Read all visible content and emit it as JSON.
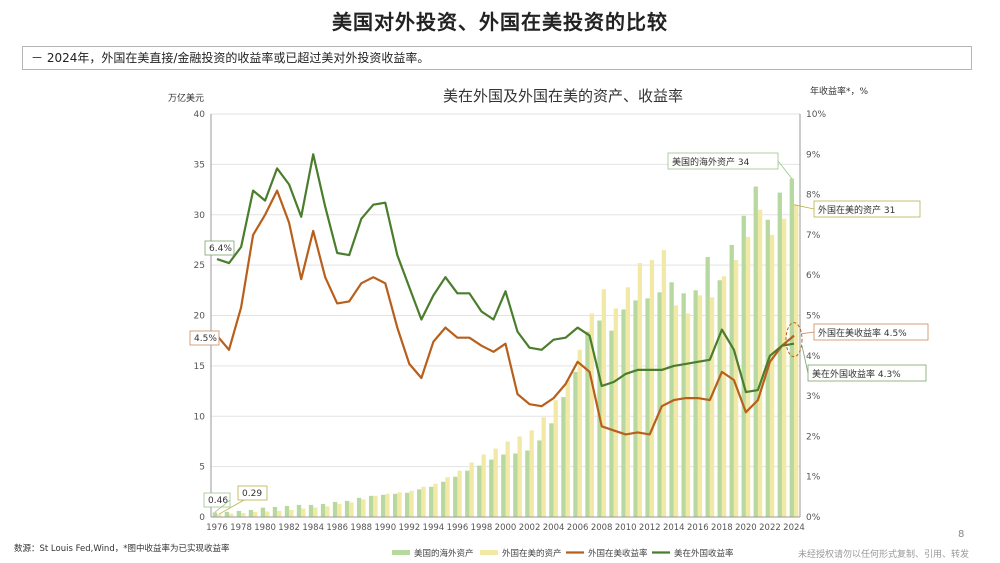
{
  "page": {
    "title": "美国对外投资、外国在美投资的比较",
    "note": "－ 2024年，外国在美直接/金融投资的收益率或已超过美对外投资收益率。",
    "source": "数源：St Louis Fed,Wind，*图中收益率为已实现收益率",
    "page_number": "8",
    "copyright": "未经授权请勿以任何形式复制、引用、转发"
  },
  "colors": {
    "us_overseas_assets": "#b7d9a0",
    "foreign_us_assets": "#f3e9a6",
    "foreign_us_yield": "#b85f1c",
    "us_foreign_yield": "#4a7d2c"
  },
  "chart_data": {
    "type": "bar+line",
    "title": "美在外国及外国在美的资产、收益率",
    "y_left_label": "万亿美元",
    "y_right_label": "年收益率*，%",
    "ylim_left": [
      0,
      40
    ],
    "ylim_right": [
      0,
      10
    ],
    "y_left_ticks": [
      "0",
      "5",
      "10",
      "15",
      "20",
      "25",
      "30",
      "35",
      "40"
    ],
    "y_right_ticks": [
      "0%",
      "1%",
      "2%",
      "3%",
      "4%",
      "5%",
      "6%",
      "7%",
      "8%",
      "9%",
      "10%"
    ],
    "x": [
      1976,
      1977,
      1978,
      1979,
      1980,
      1981,
      1982,
      1983,
      1984,
      1985,
      1986,
      1987,
      1988,
      1989,
      1990,
      1991,
      1992,
      1993,
      1994,
      1995,
      1996,
      1997,
      1998,
      1999,
      2000,
      2001,
      2002,
      2003,
      2004,
      2005,
      2006,
      2007,
      2008,
      2009,
      2010,
      2011,
      2012,
      2013,
      2014,
      2015,
      2016,
      2017,
      2018,
      2019,
      2020,
      2021,
      2022,
      2023,
      2024
    ],
    "x_tick_labels": [
      "1976",
      "1978",
      "1980",
      "1982",
      "1984",
      "1986",
      "1988",
      "1990",
      "1992",
      "1994",
      "1996",
      "1998",
      "2000",
      "2002",
      "2004",
      "2006",
      "2008",
      "2010",
      "2012",
      "2014",
      "2016",
      "2018",
      "2020",
      "2022",
      "2024"
    ],
    "series": [
      {
        "name": "美国的海外资产",
        "type": "bar",
        "axis": "left",
        "values": [
          0.46,
          0.51,
          0.6,
          0.7,
          0.93,
          1.0,
          1.1,
          1.2,
          1.2,
          1.3,
          1.5,
          1.6,
          1.9,
          2.1,
          2.2,
          2.3,
          2.4,
          2.75,
          3.0,
          3.5,
          4.0,
          4.6,
          5.1,
          5.7,
          6.2,
          6.3,
          6.6,
          7.6,
          9.3,
          11.9,
          14.4,
          18.4,
          19.5,
          18.5,
          20.6,
          21.5,
          21.7,
          22.3,
          23.3,
          22.2,
          22.5,
          25.8,
          23.5,
          27.0,
          29.9,
          32.8,
          29.5,
          32.2,
          33.6
        ]
      },
      {
        "name": "外国在美的资产",
        "type": "bar",
        "axis": "left",
        "values": [
          0.29,
          0.33,
          0.4,
          0.5,
          0.55,
          0.6,
          0.7,
          0.85,
          0.95,
          1.05,
          1.3,
          1.45,
          1.75,
          2.1,
          2.3,
          2.45,
          2.6,
          3.0,
          3.3,
          3.95,
          4.6,
          5.4,
          6.2,
          6.8,
          7.5,
          8.0,
          8.6,
          9.9,
          11.6,
          13.6,
          16.6,
          20.2,
          22.6,
          20.7,
          22.8,
          25.2,
          25.5,
          26.5,
          21.0,
          20.2,
          22.0,
          21.8,
          23.9,
          25.5,
          27.8,
          30.5,
          28.0,
          29.6,
          31.0
        ]
      },
      {
        "name": "外国在美收益率",
        "type": "line",
        "axis": "right",
        "values": [
          4.5,
          4.15,
          5.2,
          7.0,
          7.5,
          8.1,
          7.3,
          5.9,
          7.1,
          5.95,
          5.3,
          5.35,
          5.8,
          5.95,
          5.8,
          4.7,
          3.8,
          3.45,
          4.35,
          4.7,
          4.45,
          4.45,
          4.25,
          4.1,
          4.3,
          3.05,
          2.8,
          2.75,
          2.95,
          3.3,
          3.85,
          3.6,
          2.25,
          2.15,
          2.05,
          2.1,
          2.05,
          2.75,
          2.9,
          2.95,
          2.95,
          2.9,
          3.6,
          3.4,
          2.6,
          2.9,
          3.85,
          4.25,
          4.5
        ]
      },
      {
        "name": "美在外国收益率",
        "type": "line",
        "axis": "right",
        "values": [
          6.4,
          6.3,
          6.7,
          8.1,
          7.85,
          8.65,
          8.25,
          7.45,
          9.0,
          7.7,
          6.55,
          6.5,
          7.4,
          7.75,
          7.8,
          6.5,
          5.7,
          4.9,
          5.5,
          5.95,
          5.55,
          5.55,
          5.1,
          4.9,
          5.6,
          4.6,
          4.2,
          4.15,
          4.4,
          4.45,
          4.7,
          4.5,
          3.25,
          3.35,
          3.55,
          3.65,
          3.65,
          3.65,
          3.75,
          3.8,
          3.85,
          3.9,
          4.65,
          4.15,
          3.1,
          3.15,
          4.0,
          4.25,
          4.3
        ]
      }
    ],
    "legend_position": "bottom",
    "annotations": [
      {
        "text": "美国的海外资产  34",
        "target": "us_assets_end"
      },
      {
        "text": "外国在美的资产  31",
        "target": "fr_assets_end"
      },
      {
        "text": "外国在美收益率  4.5%",
        "target": "fr_yield_end"
      },
      {
        "text": "美在外国收益率  4.3%",
        "target": "us_yield_end"
      },
      {
        "text": "6.4%",
        "target": "us_yield_start"
      },
      {
        "text": "4.5%",
        "target": "fr_yield_start"
      },
      {
        "text": "0.46",
        "target": "us_assets_start"
      },
      {
        "text": "0.29",
        "target": "fr_assets_start"
      }
    ]
  }
}
